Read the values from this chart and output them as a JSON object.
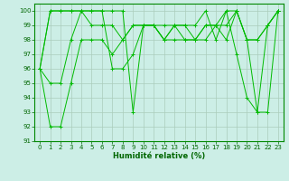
{
  "xlabel": "Humidité relative (%)",
  "xlim": [
    -0.5,
    23.5
  ],
  "ylim": [
    91,
    100.5
  ],
  "yticks": [
    91,
    92,
    93,
    94,
    95,
    96,
    97,
    98,
    99,
    100
  ],
  "xticks": [
    0,
    1,
    2,
    3,
    4,
    5,
    6,
    7,
    8,
    9,
    10,
    11,
    12,
    13,
    14,
    15,
    16,
    17,
    18,
    19,
    20,
    21,
    22,
    23
  ],
  "bg_color": "#cceee6",
  "grid_color": "#aaccbb",
  "line_color": "#00bb00",
  "series": [
    [
      96,
      92,
      92,
      95,
      98,
      98,
      98,
      97,
      98,
      99,
      99,
      99,
      98,
      98,
      98,
      98,
      98,
      99,
      98,
      100,
      98,
      98,
      99,
      100
    ],
    [
      96,
      95,
      95,
      98,
      100,
      99,
      99,
      99,
      98,
      99,
      99,
      99,
      99,
      99,
      98,
      98,
      99,
      99,
      99,
      100,
      98,
      98,
      99,
      100
    ],
    [
      96,
      100,
      100,
      100,
      100,
      100,
      100,
      100,
      100,
      93,
      99,
      99,
      98,
      99,
      99,
      99,
      100,
      98,
      100,
      97,
      94,
      93,
      99,
      100
    ],
    [
      96,
      100,
      100,
      100,
      100,
      100,
      100,
      96,
      96,
      97,
      99,
      99,
      98,
      99,
      99,
      98,
      99,
      99,
      100,
      100,
      98,
      93,
      93,
      100
    ]
  ]
}
